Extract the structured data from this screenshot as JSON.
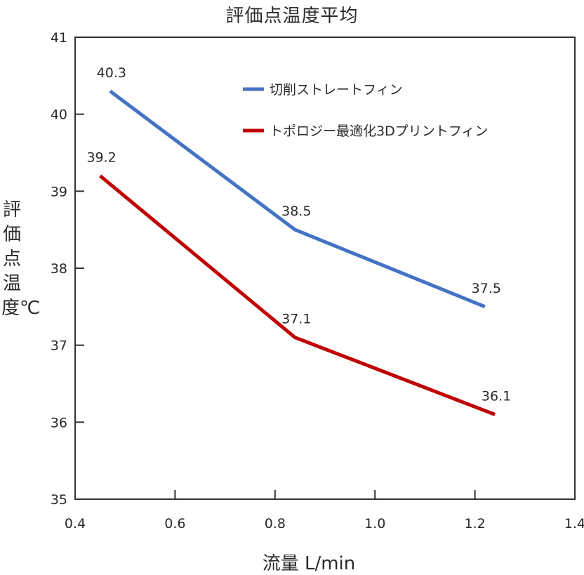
{
  "chart_data": {
    "type": "line",
    "title": "評価点温度平均",
    "xlabel": "流量 L/min",
    "ylabel": "評価点温度℃",
    "xlim": [
      0.4,
      1.4
    ],
    "ylim": [
      35,
      41
    ],
    "x_ticks": [
      "0.4",
      "0.6",
      "0.8",
      "1.0",
      "1.2",
      "1.4"
    ],
    "y_ticks": [
      "35",
      "36",
      "37",
      "38",
      "39",
      "40",
      "41"
    ],
    "grid": false,
    "legend_position": "top-right",
    "series": [
      {
        "name": "切削ストレートフィン",
        "color": "#4472C4",
        "x": [
          0.47,
          0.84,
          1.22
        ],
        "y": [
          40.3,
          38.5,
          37.5
        ],
        "labels": [
          "40.3",
          "38.5",
          "37.5"
        ]
      },
      {
        "name": "トポロジー最適化3Dプリントフィン",
        "color": "#C00000",
        "x": [
          0.45,
          0.84,
          1.24
        ],
        "y": [
          39.2,
          37.1,
          36.1
        ],
        "labels": [
          "39.2",
          "37.1",
          "36.1"
        ]
      }
    ]
  }
}
